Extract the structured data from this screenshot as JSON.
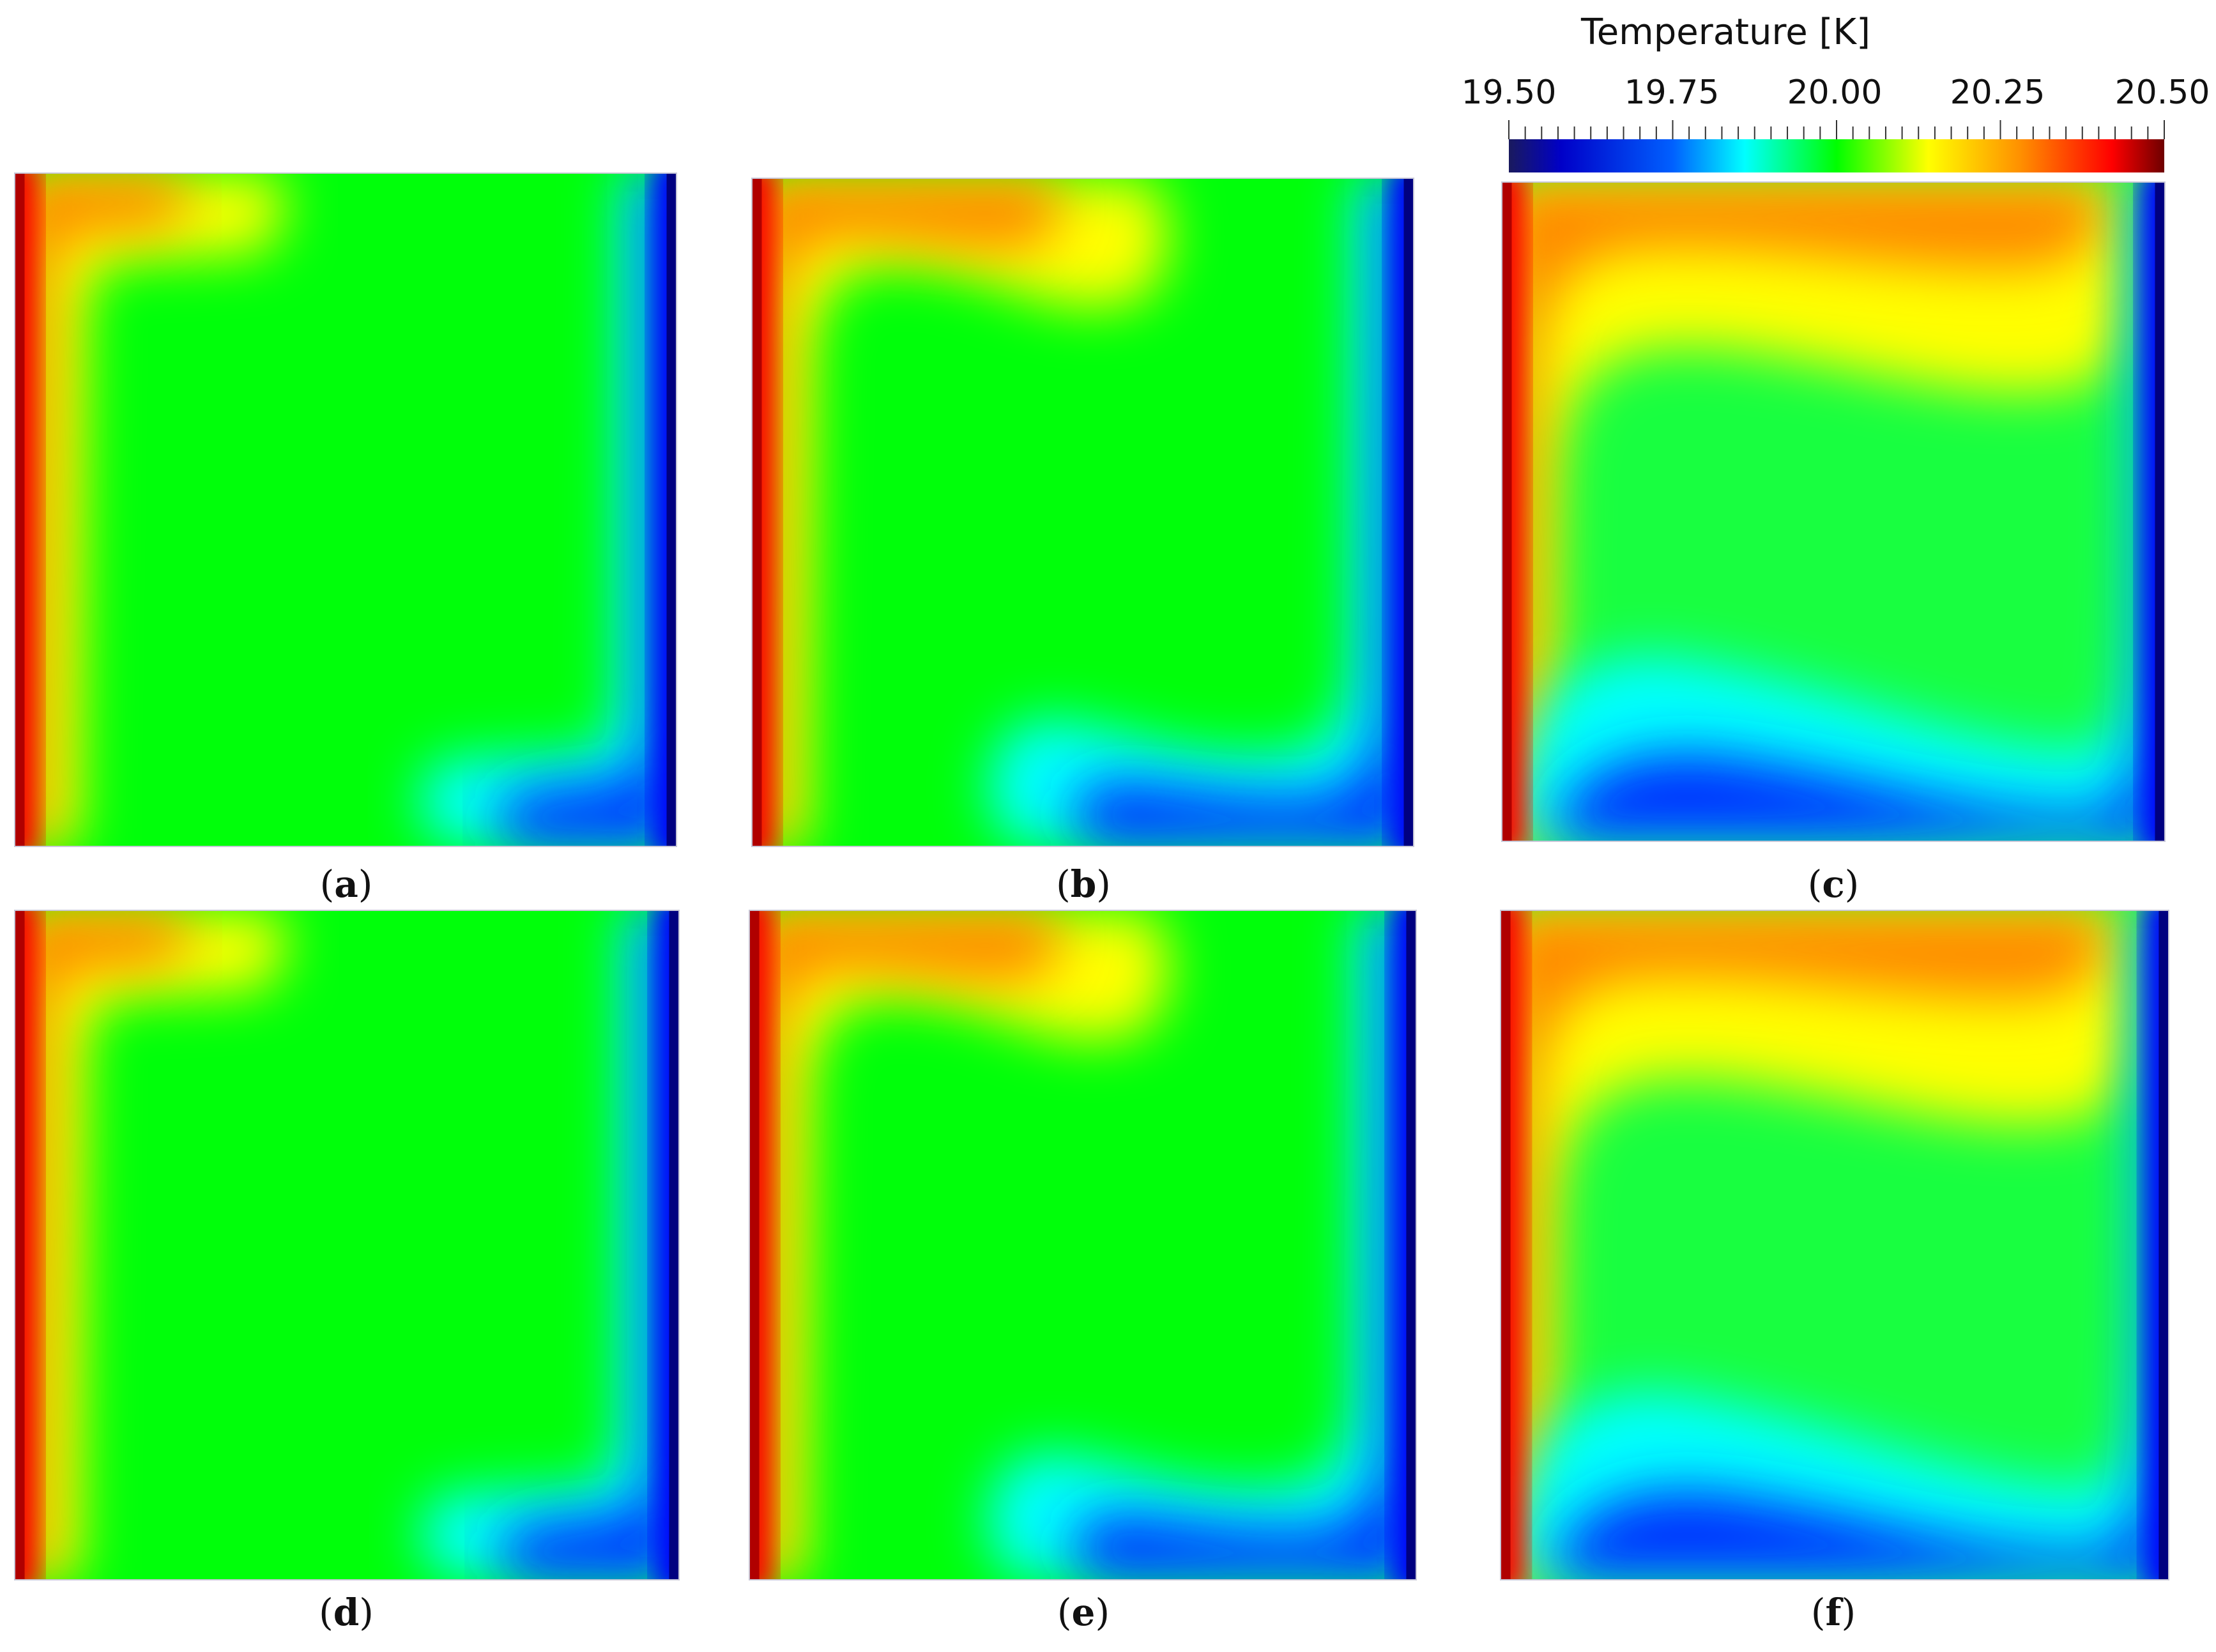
{
  "colorbar": {
    "title": "Temperature [K]",
    "ticks": [
      "19.50",
      "19.75",
      "20.00",
      "20.25",
      "20.50"
    ],
    "min": 19.5,
    "max": 20.5,
    "colors": [
      "#1a1a5e",
      "#0000ff",
      "#00ffff",
      "#00ff00",
      "#ffff00",
      "#ff8000",
      "#ff0000",
      "#7a0000"
    ]
  },
  "panels": [
    {
      "label": "a",
      "variant": "narrow"
    },
    {
      "label": "b",
      "variant": "medium"
    },
    {
      "label": "c",
      "variant": "wide"
    },
    {
      "label": "d",
      "variant": "narrow"
    },
    {
      "label": "e",
      "variant": "medium"
    },
    {
      "label": "f",
      "variant": "wide"
    }
  ]
}
